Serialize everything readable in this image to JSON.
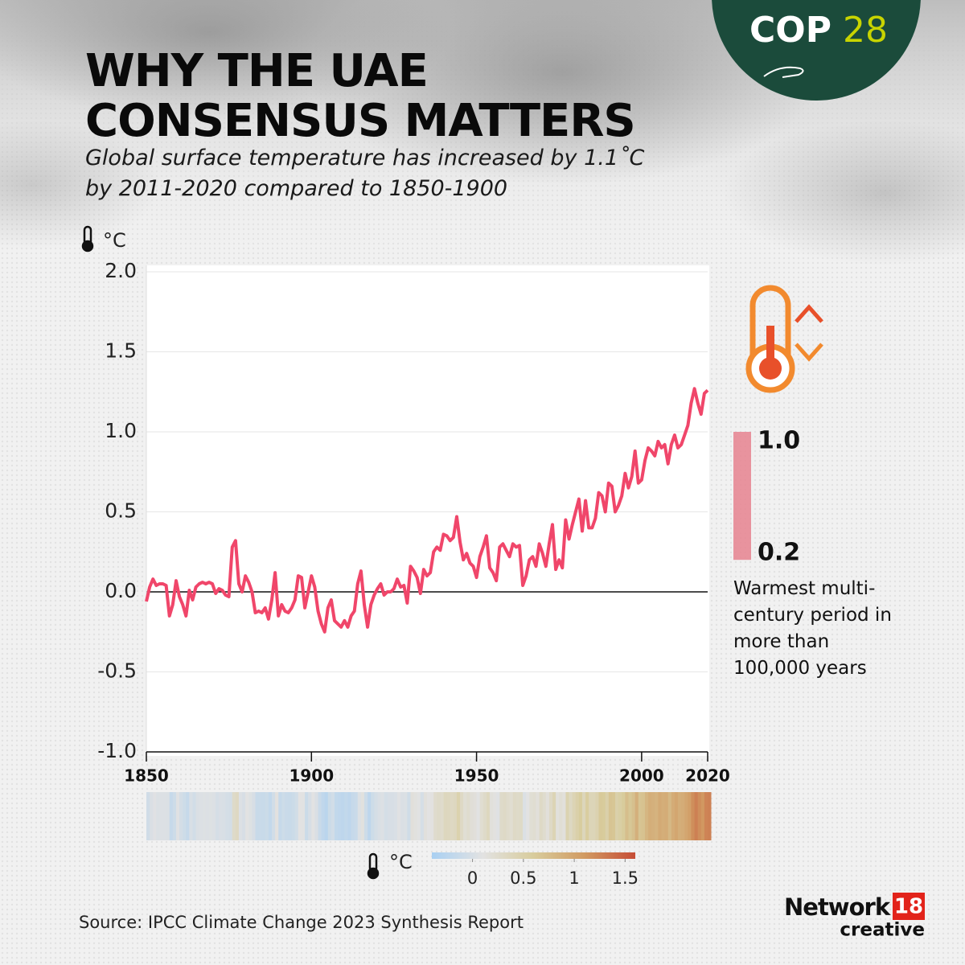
{
  "chart_data": {
    "type": "line",
    "title": "WHY THE UAE CONSENSUS MATTERS",
    "subtitle": "Global surface temperature has increased by 1.1˚C by 2011-2020 compared to 1850-1900",
    "y_unit": "°C",
    "x": [
      1850,
      1851,
      1852,
      1853,
      1854,
      1855,
      1856,
      1857,
      1858,
      1859,
      1860,
      1861,
      1862,
      1863,
      1864,
      1865,
      1866,
      1867,
      1868,
      1869,
      1870,
      1871,
      1872,
      1873,
      1874,
      1875,
      1876,
      1877,
      1878,
      1879,
      1880,
      1881,
      1882,
      1883,
      1884,
      1885,
      1886,
      1887,
      1888,
      1889,
      1890,
      1891,
      1892,
      1893,
      1894,
      1895,
      1896,
      1897,
      1898,
      1899,
      1900,
      1901,
      1902,
      1903,
      1904,
      1905,
      1906,
      1907,
      1908,
      1909,
      1910,
      1911,
      1912,
      1913,
      1914,
      1915,
      1916,
      1917,
      1918,
      1919,
      1920,
      1921,
      1922,
      1923,
      1924,
      1925,
      1926,
      1927,
      1928,
      1929,
      1930,
      1931,
      1932,
      1933,
      1934,
      1935,
      1936,
      1937,
      1938,
      1939,
      1940,
      1941,
      1942,
      1943,
      1944,
      1945,
      1946,
      1947,
      1948,
      1949,
      1950,
      1951,
      1952,
      1953,
      1954,
      1955,
      1956,
      1957,
      1958,
      1959,
      1960,
      1961,
      1962,
      1963,
      1964,
      1965,
      1966,
      1967,
      1968,
      1969,
      1970,
      1971,
      1972,
      1973,
      1974,
      1975,
      1976,
      1977,
      1978,
      1979,
      1980,
      1981,
      1982,
      1983,
      1984,
      1985,
      1986,
      1987,
      1988,
      1989,
      1990,
      1991,
      1992,
      1993,
      1994,
      1995,
      1996,
      1997,
      1998,
      1999,
      2000,
      2001,
      2002,
      2003,
      2004,
      2005,
      2006,
      2007,
      2008,
      2009,
      2010,
      2011,
      2012,
      2013,
      2014,
      2015,
      2016,
      2017,
      2018,
      2019,
      2020
    ],
    "values": [
      -0.06,
      0.03,
      0.08,
      0.04,
      0.05,
      0.05,
      0.04,
      -0.15,
      -0.08,
      0.07,
      -0.03,
      -0.08,
      -0.15,
      0.01,
      -0.05,
      0.03,
      0.05,
      0.06,
      0.05,
      0.06,
      0.05,
      -0.01,
      0.02,
      0.01,
      -0.02,
      -0.03,
      0.28,
      0.32,
      0.05,
      0.0,
      0.1,
      0.06,
      0.0,
      -0.13,
      -0.12,
      -0.13,
      -0.1,
      -0.17,
      -0.05,
      0.12,
      -0.15,
      -0.08,
      -0.12,
      -0.13,
      -0.1,
      -0.05,
      0.1,
      0.09,
      -0.1,
      0.0,
      0.1,
      0.03,
      -0.12,
      -0.2,
      -0.25,
      -0.1,
      -0.05,
      -0.18,
      -0.2,
      -0.22,
      -0.18,
      -0.22,
      -0.15,
      -0.12,
      0.05,
      0.13,
      -0.08,
      -0.22,
      -0.08,
      -0.02,
      0.02,
      0.05,
      -0.02,
      0.0,
      0.0,
      0.02,
      0.08,
      0.03,
      0.04,
      -0.07,
      0.16,
      0.13,
      0.09,
      -0.01,
      0.14,
      0.1,
      0.12,
      0.25,
      0.28,
      0.26,
      0.36,
      0.35,
      0.32,
      0.34,
      0.47,
      0.31,
      0.2,
      0.24,
      0.18,
      0.16,
      0.09,
      0.22,
      0.28,
      0.35,
      0.15,
      0.12,
      0.07,
      0.28,
      0.3,
      0.26,
      0.22,
      0.3,
      0.28,
      0.29,
      0.04,
      0.1,
      0.2,
      0.22,
      0.16,
      0.3,
      0.24,
      0.16,
      0.3,
      0.42,
      0.14,
      0.2,
      0.15,
      0.45,
      0.33,
      0.42,
      0.5,
      0.58,
      0.38,
      0.57,
      0.4,
      0.4,
      0.46,
      0.62,
      0.6,
      0.5,
      0.68,
      0.66,
      0.5,
      0.54,
      0.6,
      0.74,
      0.65,
      0.72,
      0.88,
      0.68,
      0.7,
      0.82,
      0.9,
      0.88,
      0.85,
      0.94,
      0.9,
      0.92,
      0.8,
      0.92,
      0.98,
      0.9,
      0.92,
      0.98,
      1.04,
      1.18,
      1.27,
      1.18,
      1.11,
      1.24,
      1.26
    ],
    "color": "#f0466a",
    "xlim": [
      1850,
      2020
    ],
    "xticks": [
      1850,
      1900,
      1950,
      2000,
      2020
    ],
    "ylim": [
      -1,
      2
    ],
    "yticks": [
      {
        "value": 2,
        "label": "2.0"
      },
      1.5,
      {
        "value": 1,
        "label": "1.0"
      },
      0.5,
      {
        "value": 0,
        "label": "0.0"
      },
      -0.5,
      {
        "value": -1,
        "label": "-1.0"
      }
    ],
    "grid": true,
    "colorbar": {
      "lim": [
        -0.4,
        1.6
      ],
      "ticks": [
        0,
        0.5,
        1,
        1.5
      ],
      "colors": [
        "#a9d0f2",
        "#e2e2e2",
        "#d8cc9c",
        "#d19a62",
        "#c64d36"
      ],
      "label": "°C"
    },
    "warmest_range": [
      0.2,
      1
    ],
    "warmest_range_labels": [
      "0.2",
      "1.0"
    ],
    "warmest_text": "Warmest multi-century period in more than 100,000 years",
    "source": "Source: IPCC Climate Change 2023 Synthesis Report",
    "logo": {
      "name": "COP",
      "number": "28"
    },
    "brand": {
      "name": "Network",
      "number": "18",
      "tag": "creative"
    }
  }
}
